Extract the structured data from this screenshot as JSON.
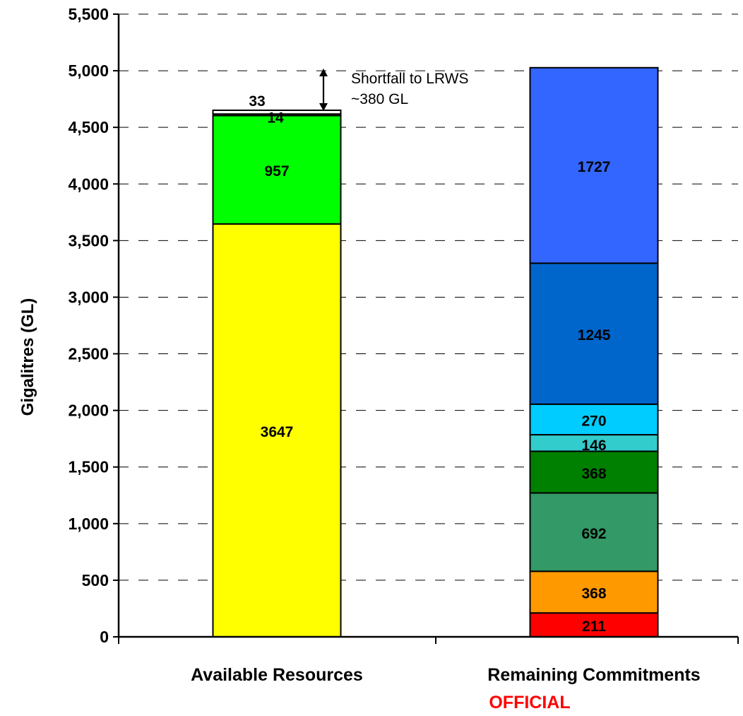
{
  "chart_data": {
    "type": "bar",
    "stacked": true,
    "ylabel": "Gigalitres (GL)",
    "xlabel": "",
    "ylim": [
      0,
      5500
    ],
    "ytick_step": 500,
    "yticks": [
      "0",
      "500",
      "1,000",
      "1,500",
      "2,000",
      "2,500",
      "3,000",
      "3,500",
      "4,000",
      "4,500",
      "5,000",
      "5,500"
    ],
    "grid": "dashed horizontal",
    "categories": [
      "Available Resources",
      "Remaining Commitments"
    ],
    "bars": [
      {
        "category": "Available Resources",
        "segments": [
          {
            "value": 3647,
            "label": "3647",
            "color": "#FFFF00"
          },
          {
            "value": 957,
            "label": "957",
            "color": "#00FF00"
          },
          {
            "value": 14,
            "label": "14",
            "color": "#C0C0C0"
          },
          {
            "value": 33,
            "label": "33",
            "color": "#FFFFFF"
          }
        ]
      },
      {
        "category": "Remaining Commitments",
        "segments": [
          {
            "value": 211,
            "label": "211",
            "color": "#FF0000"
          },
          {
            "value": 368,
            "label": "368",
            "color": "#FF9900"
          },
          {
            "value": 692,
            "label": "692",
            "color": "#339966"
          },
          {
            "value": 368,
            "label": "368",
            "color": "#008000"
          },
          {
            "value": 146,
            "label": "146",
            "color": "#33CCCC"
          },
          {
            "value": 270,
            "label": "270",
            "color": "#00CCFF"
          },
          {
            "value": 1245,
            "label": "1245",
            "color": "#0066CC"
          },
          {
            "value": 1727,
            "label": "1727",
            "color": "#3366FF"
          }
        ]
      }
    ],
    "annotation": {
      "lines": [
        "Shortfall to LRWS",
        "~380 GL"
      ]
    }
  },
  "footer": {
    "text": "OFFICIAL",
    "color": "#FF0000"
  }
}
